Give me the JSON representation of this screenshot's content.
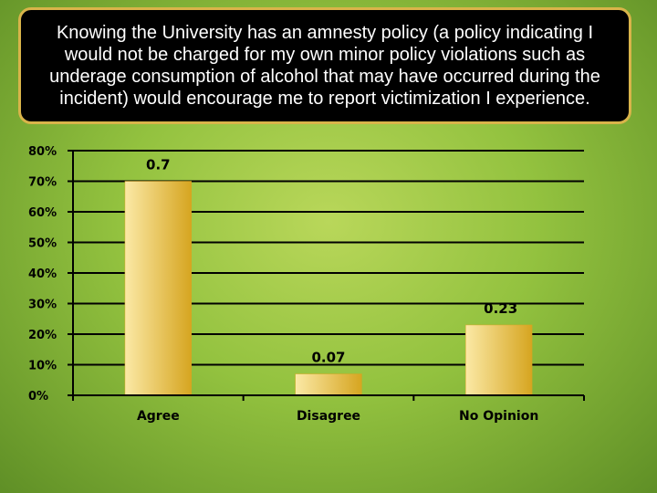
{
  "chart_data": {
    "type": "bar",
    "title": "Knowing the University has an amnesty policy (a policy indicating I would not be charged for my own minor policy violations such as underage consumption of alcohol that may have occurred during the incident) would encourage me to report victimization I experience.",
    "categories": [
      "Agree",
      "Disagree",
      "No Opinion"
    ],
    "values": [
      0.7,
      0.07,
      0.23
    ],
    "data_labels": [
      "0.7",
      "0.07",
      "0.23"
    ],
    "ylim": [
      0,
      0.8
    ],
    "yticks": [
      0,
      0.1,
      0.2,
      0.3,
      0.4,
      0.5,
      0.6,
      0.7,
      0.8
    ],
    "ytick_labels": [
      "0%",
      "10%",
      "20%",
      "30%",
      "40%",
      "50%",
      "60%",
      "70%",
      "80%"
    ],
    "grid": true,
    "legend": "none",
    "colors": {
      "bar_light": "#fbe9a6",
      "bar_dark": "#d6a520",
      "title_bg": "#000000",
      "title_border": "#d9b44a",
      "title_text": "#ffffff"
    }
  }
}
